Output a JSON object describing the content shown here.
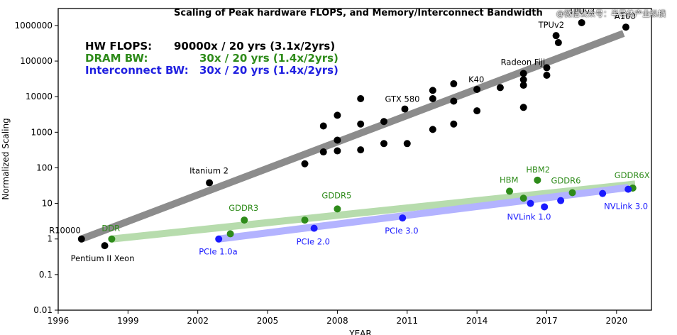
{
  "chart_data": {
    "type": "scatter",
    "title": "Scaling of Peak hardware FLOPS, and Memory/Interconnect Bandwidth",
    "xlabel": "YEAR",
    "ylabel": "Normalized Scaling",
    "y_scale": "log",
    "xlim": [
      1996,
      2021.5
    ],
    "ylim": [
      0.01,
      3000000
    ],
    "xticks": [
      1996,
      1999,
      2002,
      2005,
      2008,
      2011,
      2014,
      2017,
      2020
    ],
    "yticks": [
      {
        "value": 0.01,
        "label": "0.01"
      },
      {
        "value": 0.1,
        "label": "0.1"
      },
      {
        "value": 1,
        "label": "1"
      },
      {
        "value": 10,
        "label": "10"
      },
      {
        "value": 100,
        "label": "100"
      },
      {
        "value": 1000,
        "label": "1000"
      },
      {
        "value": 10000,
        "label": "10000"
      },
      {
        "value": 100000,
        "label": "100000"
      },
      {
        "value": 1000000,
        "label": "1000000"
      }
    ],
    "grid": false,
    "legend_placement": "top-left",
    "legend": [
      {
        "name": "HW FLOPS:",
        "text": "90000x / 20 yrs (3.1x/2yrs)",
        "color": "#000000"
      },
      {
        "name": "DRAM BW:",
        "text": "30x / 20 yrs (1.4x/2yrs)",
        "color": "#2e8b1a"
      },
      {
        "name": "Interconnect BW:",
        "text": "30x / 20 yrs (1.4x/2yrs)",
        "color": "#2020e0"
      }
    ],
    "series": [
      {
        "name": "HW FLOPS",
        "color": "#000000",
        "trend_color": "#8c8c8c",
        "trend": [
          [
            1997,
            1
          ],
          [
            2020.3,
            600000
          ]
        ],
        "points": [
          {
            "x": 1997,
            "y": 1,
            "label": "R10000"
          },
          {
            "x": 1998,
            "y": 0.65,
            "label": "Pentium II Xeon"
          },
          {
            "x": 2002.5,
            "y": 38,
            "label": "Itanium 2"
          },
          {
            "x": 2006.6,
            "y": 130
          },
          {
            "x": 2007.4,
            "y": 280
          },
          {
            "x": 2007.4,
            "y": 1500
          },
          {
            "x": 2008,
            "y": 300
          },
          {
            "x": 2008,
            "y": 600
          },
          {
            "x": 2008,
            "y": 3000
          },
          {
            "x": 2009,
            "y": 320
          },
          {
            "x": 2009,
            "y": 1700
          },
          {
            "x": 2009,
            "y": 8800
          },
          {
            "x": 2010,
            "y": 480
          },
          {
            "x": 2010,
            "y": 2000
          },
          {
            "x": 2010.9,
            "y": 4500,
            "label": "GTX 580"
          },
          {
            "x": 2011,
            "y": 480
          },
          {
            "x": 2012.1,
            "y": 1200
          },
          {
            "x": 2012.1,
            "y": 8800
          },
          {
            "x": 2012.1,
            "y": 15000
          },
          {
            "x": 2013,
            "y": 1700
          },
          {
            "x": 2013,
            "y": 7500
          },
          {
            "x": 2013,
            "y": 23000
          },
          {
            "x": 2014,
            "y": 4000
          },
          {
            "x": 2014,
            "y": 16000,
            "label": "K40"
          },
          {
            "x": 2015,
            "y": 18000
          },
          {
            "x": 2016,
            "y": 5000
          },
          {
            "x": 2016,
            "y": 21000
          },
          {
            "x": 2016,
            "y": 30000
          },
          {
            "x": 2016,
            "y": 45000,
            "label": "Radeon Fiji"
          },
          {
            "x": 2017,
            "y": 40000
          },
          {
            "x": 2017,
            "y": 65000
          },
          {
            "x": 2017.5,
            "y": 330000
          },
          {
            "x": 2017.4,
            "y": 520000,
            "label": "TPUv2"
          },
          {
            "x": 2018.5,
            "y": 1200000,
            "label": "TPUv3"
          },
          {
            "x": 2020.4,
            "y": 900000,
            "label": "A100"
          }
        ]
      },
      {
        "name": "DRAM BW",
        "color": "#2e8b1a",
        "trend_color": "#b7dcad",
        "trend": [
          [
            1998.3,
            1
          ],
          [
            2020.8,
            35
          ]
        ],
        "points": [
          {
            "x": 1998.3,
            "y": 1,
            "label": "DDR"
          },
          {
            "x": 2003.4,
            "y": 1.4
          },
          {
            "x": 2004,
            "y": 3.4,
            "label": "GDDR3"
          },
          {
            "x": 2006.6,
            "y": 3.4
          },
          {
            "x": 2008,
            "y": 7,
            "label": "GDDR5"
          },
          {
            "x": 2015.4,
            "y": 22,
            "label": "HBM"
          },
          {
            "x": 2016,
            "y": 14
          },
          {
            "x": 2016.6,
            "y": 45,
            "label": "HBM2"
          },
          {
            "x": 2018.1,
            "y": 20,
            "label": "GDDR6"
          },
          {
            "x": 2020.7,
            "y": 27,
            "label": "GDDR6X"
          }
        ]
      },
      {
        "name": "Interconnect BW",
        "color": "#1a1aff",
        "trend_color": "#b3b3ff",
        "trend": [
          [
            2002.9,
            1
          ],
          [
            2020.5,
            28
          ]
        ],
        "points": [
          {
            "x": 2002.9,
            "y": 1,
            "label": "PCIe 1.0a"
          },
          {
            "x": 2007,
            "y": 2,
            "label": "PCIe 2.0"
          },
          {
            "x": 2010.8,
            "y": 3.9,
            "label": "PCIe 3.0"
          },
          {
            "x": 2016.3,
            "y": 10,
            "label": "NVLink 1.0"
          },
          {
            "x": 2016.9,
            "y": 8
          },
          {
            "x": 2017.6,
            "y": 12
          },
          {
            "x": 2019.4,
            "y": 19,
            "label": "NVLink 3.0"
          },
          {
            "x": 2020.5,
            "y": 25
          }
        ]
      }
    ]
  },
  "watermark": "@微信公众号：半导体产业纵横"
}
